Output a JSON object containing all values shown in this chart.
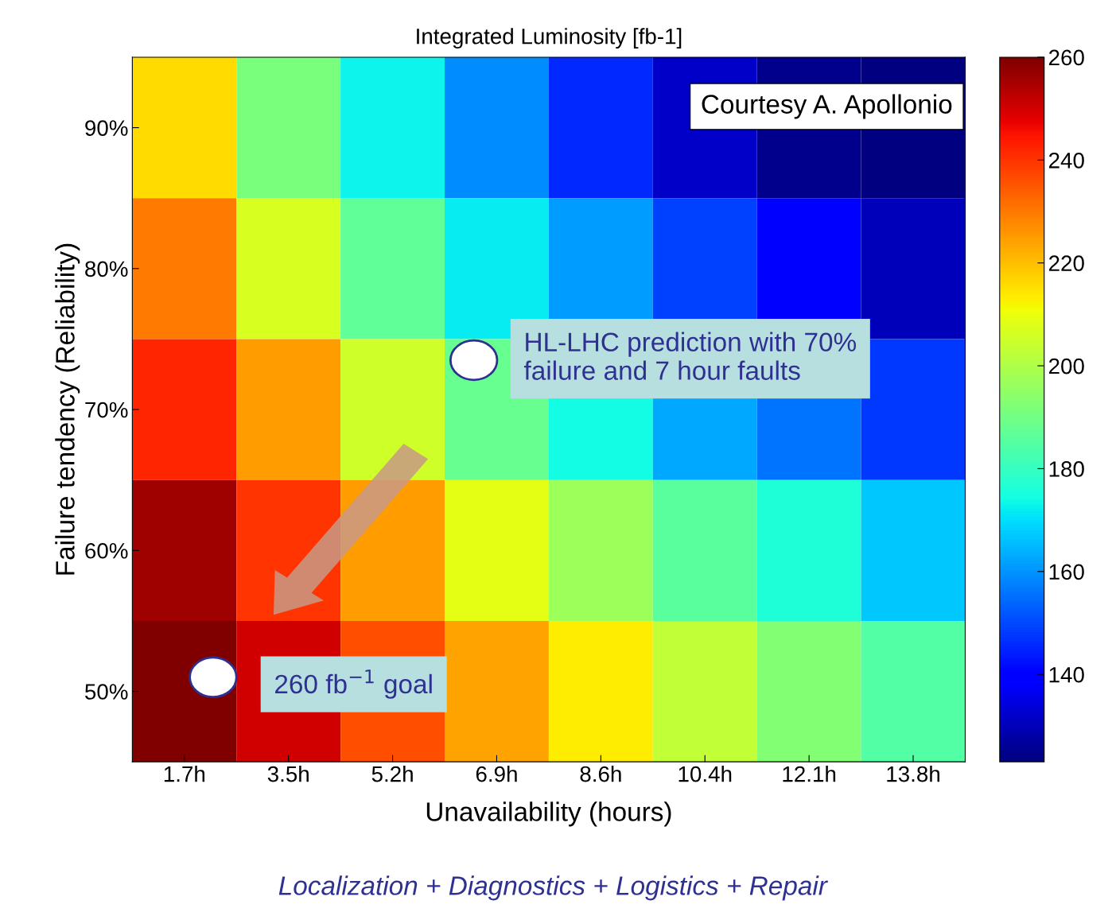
{
  "chart_data": {
    "type": "heatmap",
    "title": "Integrated Luminosity [fb-1]",
    "xlabel": "Unavailability (hours)",
    "ylabel": "Failure tendency (Reliability)",
    "categories": [
      "1.7h",
      "3.5h",
      "5.2h",
      "6.9h",
      "8.6h",
      "10.4h",
      "12.1h",
      "13.8h"
    ],
    "y_categories": [
      "90%",
      "80%",
      "70%",
      "60%",
      "50%"
    ],
    "cells": [
      [
        216,
        191,
        173,
        159,
        146,
        132,
        125,
        123
      ],
      [
        230,
        207,
        187,
        172,
        161,
        149,
        139,
        130
      ],
      [
        242,
        225,
        205,
        188,
        174,
        163,
        156,
        148
      ],
      [
        256,
        240,
        225,
        209,
        197,
        186,
        176,
        167
      ],
      [
        260,
        250,
        236,
        224,
        213,
        203,
        193,
        185
      ]
    ],
    "clim": [
      123,
      260
    ],
    "cticks": [
      140,
      160,
      180,
      200,
      220,
      240,
      260
    ],
    "annotations": [
      "HL-LHC prediction with 70% failure and 7 hour faults",
      "260 fb$^{−1}$ goal",
      "Courtesy A. Apollonio",
      "Localization + Diagnostics + Logistics + Repair"
    ]
  }
}
